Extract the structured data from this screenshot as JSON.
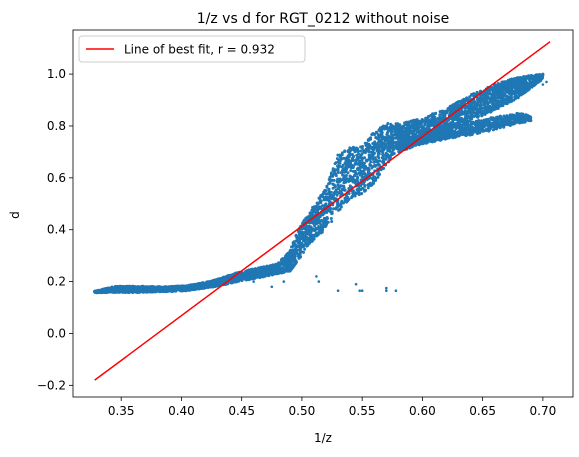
{
  "chart_data": {
    "type": "scatter",
    "title": "1/z vs d for RGT_0212 without noise",
    "xlabel": "1/z",
    "ylabel": "d",
    "xlim": [
      0.31,
      0.725
    ],
    "ylim": [
      -0.245,
      1.17
    ],
    "x_ticks": [
      0.35,
      0.4,
      0.45,
      0.5,
      0.55,
      0.6,
      0.65,
      0.7
    ],
    "x_tick_labels": [
      "0.35",
      "0.40",
      "0.45",
      "0.50",
      "0.55",
      "0.60",
      "0.65",
      "0.70"
    ],
    "y_ticks": [
      -0.2,
      0.0,
      0.2,
      0.4,
      0.6,
      0.8,
      1.0
    ],
    "y_tick_labels": [
      "−0.2",
      "0.0",
      "0.2",
      "0.4",
      "0.6",
      "0.8",
      "1.0"
    ],
    "grid": false,
    "legend": {
      "position": "top-left",
      "entries": [
        "Line of best fit, r = 0.932"
      ]
    },
    "series": [
      {
        "kind": "scatter",
        "color": "#1f77b4",
        "main_band": [
          [
            0.328,
            0.16,
            0.003
          ],
          [
            0.345,
            0.17,
            0.012
          ],
          [
            0.365,
            0.17,
            0.012
          ],
          [
            0.385,
            0.17,
            0.01
          ],
          [
            0.405,
            0.175,
            0.01
          ],
          [
            0.425,
            0.19,
            0.012
          ],
          [
            0.445,
            0.215,
            0.018
          ],
          [
            0.465,
            0.235,
            0.02
          ],
          [
            0.48,
            0.25,
            0.02
          ],
          [
            0.49,
            0.28,
            0.04
          ],
          [
            0.497,
            0.34,
            0.06
          ],
          [
            0.505,
            0.4,
            0.06
          ],
          [
            0.512,
            0.44,
            0.07
          ],
          [
            0.52,
            0.48,
            0.08
          ],
          [
            0.525,
            0.53,
            0.1
          ],
          [
            0.53,
            0.58,
            0.11
          ],
          [
            0.54,
            0.62,
            0.1
          ],
          [
            0.55,
            0.63,
            0.09
          ],
          [
            0.56,
            0.68,
            0.1
          ],
          [
            0.57,
            0.73,
            0.08
          ],
          [
            0.58,
            0.76,
            0.05
          ],
          [
            0.6,
            0.78,
            0.05
          ],
          [
            0.62,
            0.82,
            0.05
          ],
          [
            0.64,
            0.87,
            0.05
          ],
          [
            0.66,
            0.91,
            0.05
          ],
          [
            0.68,
            0.95,
            0.04
          ],
          [
            0.7,
            0.99,
            0.01
          ]
        ],
        "side_branch": [
          [
            0.58,
            0.72,
            0.02
          ],
          [
            0.6,
            0.75,
            0.02
          ],
          [
            0.62,
            0.77,
            0.02
          ],
          [
            0.64,
            0.79,
            0.025
          ],
          [
            0.66,
            0.81,
            0.025
          ],
          [
            0.68,
            0.83,
            0.02
          ],
          [
            0.69,
            0.83,
            0.01
          ]
        ],
        "outliers": [
          [
            0.46,
            0.2
          ],
          [
            0.475,
            0.18
          ],
          [
            0.485,
            0.2
          ],
          [
            0.512,
            0.22
          ],
          [
            0.514,
            0.2
          ],
          [
            0.53,
            0.165
          ],
          [
            0.545,
            0.19
          ],
          [
            0.548,
            0.165
          ],
          [
            0.57,
            0.175
          ],
          [
            0.578,
            0.165
          ],
          [
            0.55,
            0.165
          ],
          [
            0.57,
            0.165
          ],
          [
            0.7,
            0.96
          ],
          [
            0.703,
            0.97
          ]
        ]
      },
      {
        "kind": "line",
        "name": "Line of best fit, r = 0.932",
        "color": "#ff0000",
        "x": [
          0.328,
          0.706
        ],
        "y": [
          -0.18,
          1.125
        ]
      }
    ]
  }
}
